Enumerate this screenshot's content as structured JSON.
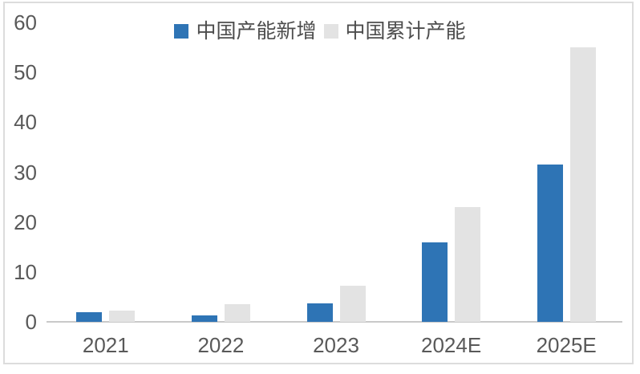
{
  "chart_data": {
    "type": "bar",
    "title": "",
    "xlabel": "",
    "ylabel": "",
    "categories": [
      "2021",
      "2022",
      "2023",
      "2024E",
      "2025E"
    ],
    "series": [
      {
        "name": "中国产能新增",
        "key": "new-capacity",
        "color": "#2e74b5",
        "values": [
          2.0,
          1.3,
          3.7,
          16.0,
          31.5
        ]
      },
      {
        "name": "中国累计产能",
        "key": "cumulative-capacity",
        "color": "#e3e3e3",
        "values": [
          2.2,
          3.5,
          7.2,
          23.0,
          55.0
        ]
      }
    ],
    "ylim": [
      0,
      60
    ],
    "yticks": [
      0,
      10,
      20,
      30,
      40,
      50,
      60
    ],
    "grid": false,
    "legend_position": "top-center"
  },
  "colors": {
    "background": "#ffffff",
    "frame_border": "#dcdcdc",
    "axis_line": "#c9c9c9",
    "tick_text": "#595959",
    "legend_text": "#4d4d4d"
  }
}
